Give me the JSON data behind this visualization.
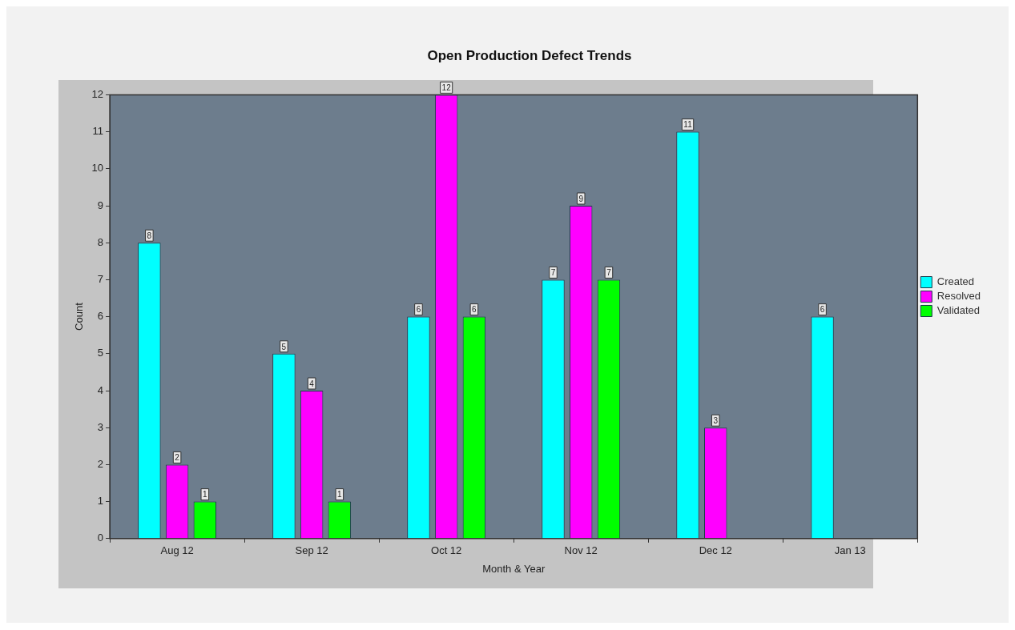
{
  "chart_data": {
    "type": "bar",
    "title": "Open Production Defect Trends",
    "xlabel": "Month & Year",
    "ylabel": "Count",
    "categories": [
      "Aug 12",
      "Sep 12",
      "Oct 12",
      "Nov 12",
      "Dec 12",
      "Jan 13"
    ],
    "series": [
      {
        "name": "Created",
        "color": "#00ffff",
        "values": [
          8,
          5,
          6,
          7,
          11,
          6
        ]
      },
      {
        "name": "Resolved",
        "color": "#ff00ff",
        "values": [
          2,
          4,
          12,
          9,
          3,
          null
        ]
      },
      {
        "name": "Validated",
        "color": "#00ff00",
        "values": [
          1,
          1,
          6,
          7,
          null,
          null
        ]
      }
    ],
    "ylim": [
      0,
      12
    ],
    "yticks": [
      0,
      1,
      2,
      3,
      4,
      5,
      6,
      7,
      8,
      9,
      10,
      11,
      12
    ],
    "grid": false,
    "legend": "right",
    "data_labels": true
  }
}
